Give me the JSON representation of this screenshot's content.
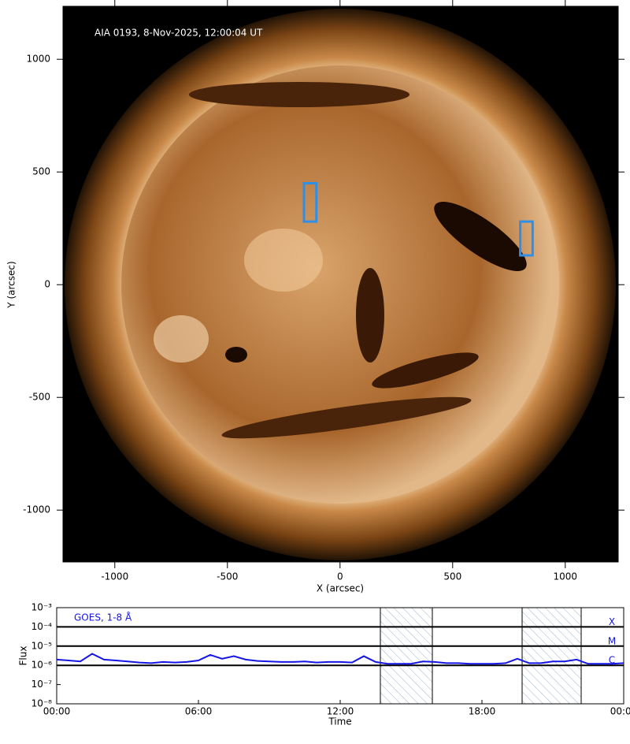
{
  "chart_data": [
    {
      "type": "image",
      "title": "AIA 0193, 8-Nov-2025, 12:00:04 UT",
      "xlabel": "X (arcsec)",
      "ylabel": "Y (arcsec)",
      "xlim": [
        -1230,
        1235
      ],
      "ylim": [
        -1230,
        1235
      ],
      "xticks": [
        -1000,
        -500,
        0,
        500,
        1000
      ],
      "yticks": [
        -1000,
        -500,
        0,
        500,
        1000
      ],
      "regions": [
        {
          "x": [
            -160,
            -105
          ],
          "y": [
            280,
            450
          ],
          "color": "#2f8fe8"
        },
        {
          "x": [
            800,
            855
          ],
          "y": [
            130,
            280
          ],
          "color": "#2f8fe8"
        }
      ]
    },
    {
      "type": "line",
      "xlabel": "Time",
      "ylabel": "Flux",
      "log_y": true,
      "xlim": [
        0,
        24
      ],
      "ylim": [
        1e-08,
        0.001
      ],
      "xticks": [
        {
          "value": 0,
          "label": "00:00"
        },
        {
          "value": 6,
          "label": "06:00"
        },
        {
          "value": 12,
          "label": "12:00"
        },
        {
          "value": 18,
          "label": "18:00"
        },
        {
          "value": 24,
          "label": "00:00"
        }
      ],
      "yticks": [
        {
          "value": 1e-08,
          "label": "10⁻⁸"
        },
        {
          "value": 1e-07,
          "label": "10⁻⁷"
        },
        {
          "value": 1e-06,
          "label": "10⁻⁶"
        },
        {
          "value": 1e-05,
          "label": "10⁻⁵"
        },
        {
          "value": 0.0001,
          "label": "10⁻⁴"
        },
        {
          "value": 0.001,
          "label": "10⁻³"
        }
      ],
      "levels": [
        {
          "value": 0.0001,
          "label": "X"
        },
        {
          "value": 1e-05,
          "label": "M"
        },
        {
          "value": 1e-06,
          "label": "C"
        }
      ],
      "shaded": [
        [
          13.7,
          15.9
        ],
        [
          19.7,
          22.2
        ]
      ],
      "x": [
        0,
        0.5,
        1,
        1.5,
        2,
        2.5,
        3,
        3.5,
        4,
        4.5,
        5,
        5.5,
        6,
        6.5,
        7,
        7.5,
        8,
        8.5,
        9,
        9.5,
        10,
        10.5,
        11,
        11.5,
        12,
        12.5,
        13,
        13.5,
        14,
        14.5,
        15,
        15.5,
        16,
        16.5,
        17,
        17.5,
        18,
        18.5,
        19,
        19.5,
        20,
        20.5,
        21,
        21.5,
        22,
        22.5,
        23,
        23.5,
        24
      ],
      "series": [
        {
          "name": "GOES, 1-8 Å",
          "color": "#1515e6",
          "values": [
            2e-06,
            1.8e-06,
            1.6e-06,
            4e-06,
            2e-06,
            1.8e-06,
            1.6e-06,
            1.4e-06,
            1.3e-06,
            1.5e-06,
            1.4e-06,
            1.5e-06,
            1.8e-06,
            3.5e-06,
            2.2e-06,
            3e-06,
            2e-06,
            1.7e-06,
            1.6e-06,
            1.5e-06,
            1.5e-06,
            1.6e-06,
            1.4e-06,
            1.5e-06,
            1.5e-06,
            1.4e-06,
            3e-06,
            1.5e-06,
            1.2e-06,
            1.2e-06,
            1.2e-06,
            1.6e-06,
            1.5e-06,
            1.3e-06,
            1.3e-06,
            1.2e-06,
            1.2e-06,
            1.2e-06,
            1.3e-06,
            2.2e-06,
            1.3e-06,
            1.3e-06,
            1.6e-06,
            1.6e-06,
            2e-06,
            1.2e-06,
            1.2e-06,
            1.2e-06,
            1.3e-06
          ]
        }
      ]
    }
  ]
}
